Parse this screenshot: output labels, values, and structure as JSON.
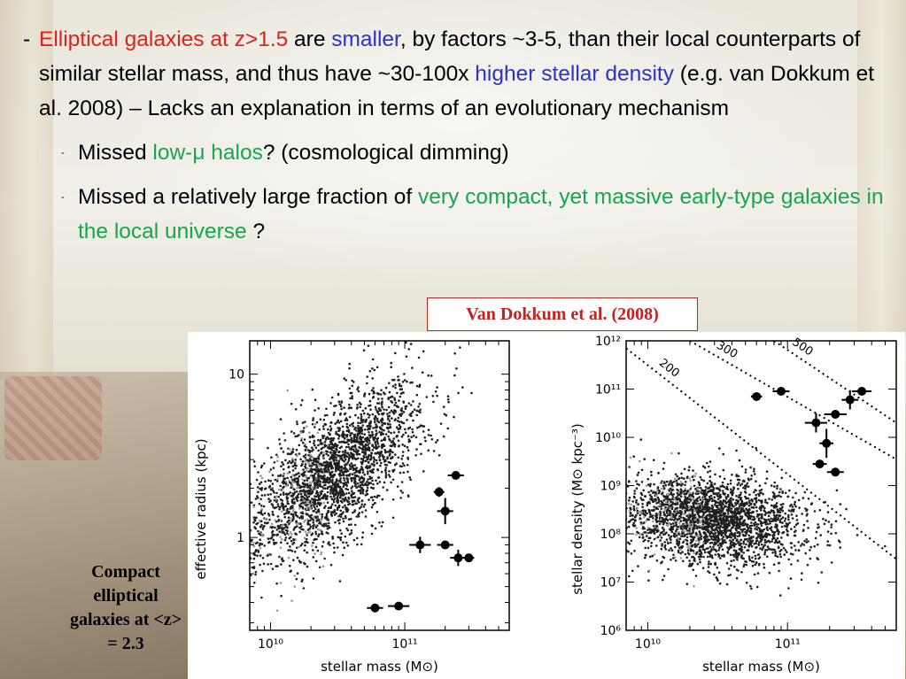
{
  "slide": {
    "bullet_main": {
      "dash": "-",
      "p1": "Elliptical galaxies at z>1.5",
      "p2": " are ",
      "p3": "smaller",
      "p4": ", by factors ~3-5, than their local counterparts of similar stellar mass, and thus have ~30-100x ",
      "p5": "higher stellar density",
      "p6": " (e.g. van Dokkum et al. 2008) – Lacks an explanation in terms of an evolutionary mechanism"
    },
    "sub1": {
      "dash": "-",
      "a": "Missed ",
      "b": "low-μ halos",
      "c": "? (cosmological dimming)"
    },
    "sub2": {
      "dash": "-",
      "a": "Missed a relatively large fraction of ",
      "b": "very compact, yet massive early-type galaxies in the local universe",
      "c": " ?"
    },
    "caption": "Van Dokkum et al. (2008)",
    "side_label": "Compact elliptical galaxies at <z> = 2.3",
    "colors": {
      "red": "#e0221b",
      "blue": "#2b33c8",
      "green": "#14a84a",
      "caption": "#c81f1f"
    }
  },
  "chart_data": [
    {
      "type": "scatter",
      "xlabel": "stellar mass (M⊙)",
      "ylabel": "effective radius (kpc)",
      "x_scale": "log",
      "y_scale": "log",
      "xlim": [
        7000000000,
        600000000000
      ],
      "ylim": [
        0.27,
        16
      ],
      "xticks": [
        {
          "v": 10000000000,
          "label": "10¹⁰"
        },
        {
          "v": 100000000000,
          "label": "10¹¹"
        }
      ],
      "yticks": [
        {
          "v": 1,
          "label": "1"
        },
        {
          "v": 10,
          "label": "10"
        }
      ],
      "grid": false,
      "background_samples": "dense cloud of local galaxies (gray and black dots)",
      "series": [
        {
          "marker": "filled-circle-with-errorbars",
          "points": [
            {
              "x": 60000000000,
              "y": 0.37,
              "xerr": 0.06,
              "yerr": 0.0
            },
            {
              "x": 90000000000,
              "y": 0.38,
              "xerr": 0.08,
              "yerr": 0.0
            },
            {
              "x": 130000000000,
              "y": 0.9,
              "xerr": 0.08,
              "yerr": 0.05
            },
            {
              "x": 200000000000,
              "y": 0.9,
              "xerr": 0.06,
              "yerr": 0.0
            },
            {
              "x": 250000000000,
              "y": 0.75,
              "xerr": 0.06,
              "yerr": 0.05
            },
            {
              "x": 300000000000,
              "y": 0.75,
              "xerr": 0.04,
              "yerr": 0.0
            },
            {
              "x": 180000000000,
              "y": 1.9,
              "xerr": 0.04,
              "yerr": 0.03
            },
            {
              "x": 200000000000,
              "y": 1.45,
              "xerr": 0.06,
              "yerr": 0.08
            },
            {
              "x": 240000000000,
              "y": 2.4,
              "xerr": 0.06,
              "yerr": 0.0
            }
          ]
        }
      ]
    },
    {
      "type": "scatter",
      "xlabel": "stellar mass (M⊙)",
      "ylabel": "stellar density (M⊙ kpc⁻³)",
      "x_scale": "log",
      "y_scale": "log",
      "xlim": [
        7000000000,
        600000000000
      ],
      "ylim": [
        1000000,
        1000000000000
      ],
      "xticks": [
        {
          "v": 10000000000,
          "label": "10¹⁰"
        },
        {
          "v": 100000000000,
          "label": "10¹¹"
        }
      ],
      "yticks": [
        {
          "v": 1000000,
          "label": "10⁶"
        },
        {
          "v": 10000000,
          "label": "10⁷"
        },
        {
          "v": 100000000,
          "label": "10⁸"
        },
        {
          "v": 1000000000,
          "label": "10⁹"
        },
        {
          "v": 10000000000,
          "label": "10¹⁰"
        },
        {
          "v": 100000000000,
          "label": "10¹¹"
        },
        {
          "v": 1000000000000,
          "label": "10¹²"
        }
      ],
      "grid": false,
      "annotations": [
        {
          "text": "200",
          "type": "dotted-line",
          "p1": [
            7000000000,
            700000000000
          ],
          "p2": [
            600000000000,
            30000000
          ]
        },
        {
          "text": "300",
          "type": "dotted-line",
          "p1": [
            20000000000,
            1000000000000
          ],
          "p2": [
            600000000000,
            3500000000
          ]
        },
        {
          "text": "500",
          "type": "dotted-line",
          "p1": [
            80000000000,
            1000000000000
          ],
          "p2": [
            600000000000,
            20000000000
          ]
        }
      ],
      "background_samples": "dense cloud of local galaxies (gray and black dots)",
      "series": [
        {
          "marker": "filled-circle-with-errorbars",
          "points": [
            {
              "x": 60000000000,
              "y": 70000000000,
              "xerr": 0.04,
              "yerr": 0.0
            },
            {
              "x": 90000000000,
              "y": 90000000000,
              "xerr": 0.06,
              "yerr": 0.0
            },
            {
              "x": 340000000000,
              "y": 90000000000,
              "xerr": 0.07,
              "yerr": 0.0
            },
            {
              "x": 280000000000,
              "y": 60000000000,
              "xerr": 0.06,
              "yerr": 0.2
            },
            {
              "x": 220000000000,
              "y": 30000000000,
              "xerr": 0.08,
              "yerr": 0.0
            },
            {
              "x": 160000000000,
              "y": 20000000000,
              "xerr": 0.08,
              "yerr": 0.2
            },
            {
              "x": 190000000000,
              "y": 7500000000,
              "xerr": 0.05,
              "yerr": 0.3
            },
            {
              "x": 170000000000,
              "y": 2800000000,
              "xerr": 0.05,
              "yerr": 0.0
            },
            {
              "x": 220000000000,
              "y": 1900000000,
              "xerr": 0.06,
              "yerr": 0.0
            }
          ]
        }
      ]
    }
  ]
}
